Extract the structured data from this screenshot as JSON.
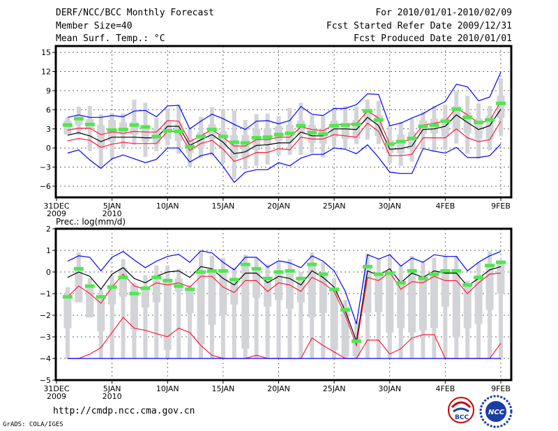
{
  "header": {
    "title": "DERF/NCC/BCC Monthly Forecast",
    "member_size": "Member Size=40",
    "variable": "Mean Surf. Temp.: °C",
    "period": "For 2010/01/01-2010/02/09",
    "started": "Fcst Started Refer Date 2009/12/31",
    "produced": "Fcst Produced Date 2010/01/01"
  },
  "footer": {
    "url": "http://cmdp.ncc.cma.gov.cn",
    "grads": "GrADS: COLA/IGES",
    "logo_bcc": "BCC",
    "logo_ncc": "NCC"
  },
  "colors": {
    "box": "#d3d4d8",
    "obs": "#4ee84e",
    "mean": "#000000",
    "spread": "#ff1a3c",
    "extreme": "#0000ff"
  },
  "chart_data": [
    {
      "type": "line",
      "title": "Mean Surf. Temp.: °C",
      "xlabel": "",
      "ylabel": "°C",
      "ylim": [
        -7.75,
        16
      ],
      "yticks": [
        15,
        12,
        9,
        6,
        3,
        0,
        -3,
        -6
      ],
      "ytick_labels": [
        "15",
        "12",
        "9",
        "6",
        "3",
        "0",
        "−3",
        "−6"
      ],
      "xticks": [
        {
          "day": 0,
          "label": "31DEC",
          "sub": "2009"
        },
        {
          "day": 5,
          "label": "5JAN",
          "sub": "2010"
        },
        {
          "day": 10,
          "label": "10JAN"
        },
        {
          "day": 15,
          "label": "15JAN"
        },
        {
          "day": 20,
          "label": "20JAN"
        },
        {
          "day": 25,
          "label": "25JAN"
        },
        {
          "day": 30,
          "label": "30JAN"
        },
        {
          "day": 35,
          "label": "4FEB"
        },
        {
          "day": 40,
          "label": "9FEB"
        }
      ],
      "grid": true,
      "series": [
        {
          "name": "ensemble-mean",
          "color": "#000000",
          "values": [
            2.0,
            2.4,
            1.9,
            1.0,
            1.7,
            1.7,
            1.7,
            1.6,
            1.6,
            3.4,
            3.4,
            0.4,
            1.3,
            2.1,
            0.9,
            -0.9,
            -0.6,
            0.4,
            0.5,
            0.8,
            0.8,
            2.5,
            1.9,
            1.9,
            3.0,
            3.0,
            2.9,
            4.8,
            3.5,
            -0.2,
            -0.1,
            0.3,
            2.9,
            3.0,
            3.4,
            5.2,
            4.0,
            2.9,
            3.5,
            6.1
          ]
        },
        {
          "name": "upper-spread",
          "color": "#ff1a3c",
          "values": [
            2.8,
            3.1,
            3.1,
            2.1,
            2.5,
            2.3,
            2.6,
            2.5,
            2.5,
            4.3,
            4.2,
            1.0,
            1.9,
            2.9,
            1.7,
            0.3,
            0.3,
            1.3,
            1.3,
            1.7,
            1.7,
            3.3,
            2.9,
            2.7,
            3.7,
            3.7,
            3.8,
            5.8,
            4.7,
            0.6,
            0.9,
            1.4,
            3.6,
            3.9,
            4.2,
            6.3,
            5.2,
            3.9,
            4.3,
            7.3
          ]
        },
        {
          "name": "lower-spread",
          "color": "#ff1a3c",
          "values": [
            1.1,
            1.5,
            1.2,
            0.1,
            0.6,
            0.9,
            0.7,
            0.7,
            0.7,
            2.6,
            2.6,
            -0.4,
            0.7,
            1.2,
            -0.2,
            -2.1,
            -1.5,
            -0.7,
            -0.7,
            -0.1,
            -0.3,
            1.7,
            1.4,
            1.4,
            2.1,
            1.9,
            1.7,
            3.9,
            2.6,
            -1.2,
            -1.2,
            -1.0,
            1.6,
            1.6,
            1.6,
            3.0,
            1.6,
            1.0,
            1.3,
            4.2
          ]
        },
        {
          "name": "maximum",
          "color": "#0000ff",
          "values": [
            4.8,
            5.2,
            4.8,
            4.8,
            5.1,
            4.9,
            5.8,
            5.9,
            4.9,
            6.6,
            6.7,
            3.0,
            4.2,
            5.3,
            4.6,
            3.7,
            2.9,
            4.2,
            4.3,
            3.8,
            4.3,
            6.5,
            5.3,
            5.1,
            6.2,
            6.2,
            6.8,
            8.5,
            8.4,
            3.5,
            3.9,
            4.7,
            5.4,
            6.4,
            7.3,
            10.0,
            9.6,
            7.4,
            8.0,
            11.9
          ]
        },
        {
          "name": "minimum",
          "color": "#0000ff",
          "values": [
            -0.8,
            -0.3,
            -1.9,
            -3.2,
            -1.7,
            -1.1,
            -1.7,
            -2.3,
            -1.8,
            0.0,
            0.0,
            -2.2,
            -1.2,
            -0.8,
            -2.9,
            -5.4,
            -3.8,
            -3.4,
            -3.4,
            -2.3,
            -2.8,
            -1.6,
            -1.0,
            -1.0,
            0.0,
            -0.2,
            -0.9,
            0.5,
            -1.5,
            -3.8,
            -4.0,
            -4.0,
            -0.1,
            -0.5,
            -0.8,
            0.1,
            -1.5,
            -1.5,
            -1.2,
            0.6
          ]
        }
      ],
      "markers": [
        3.6,
        4.6,
        3.7,
        null,
        2.8,
        2.9,
        3.6,
        3.3,
        1.8,
        2.7,
        2.6,
        0.2,
        1.8,
        2.9,
        1.8,
        0.9,
        0.8,
        1.6,
        1.7,
        2.1,
        2.3,
        3.5,
        2.4,
        2.2,
        3.5,
        3.6,
        3.7,
        5.8,
        4.4,
        0.6,
        1.0,
        1.5,
        3.4,
        3.6,
        4.2,
        6.1,
        4.8,
        4.0,
        4.4,
        7.0
      ],
      "boxes": {
        "whisker_max": [
          4.8,
          6.5,
          6.6,
          5.3,
          5.5,
          5.4,
          7.6,
          7.1,
          4.7,
          6.2,
          6.8,
          3.0,
          4.9,
          6.4,
          6.1,
          5.9,
          4.4,
          5.3,
          5.4,
          5.0,
          6.3,
          7.1,
          5.1,
          5.0,
          6.4,
          6.6,
          6.5,
          7.6,
          7.4,
          3.6,
          4.1,
          4.6,
          5.7,
          6.6,
          6.8,
          8.9,
          8.2,
          7.0,
          6.6,
          10.9
        ],
        "box_high": [
          4.3,
          5.0,
          4.5,
          3.6,
          4.4,
          4.0,
          4.1,
          3.6,
          3.0,
          4.1,
          3.9,
          1.5,
          2.5,
          3.7,
          2.6,
          2.0,
          2.0,
          3.0,
          3.1,
          3.4,
          3.6,
          4.3,
          3.6,
          3.1,
          4.3,
          4.0,
          4.4,
          6.2,
          5.2,
          1.2,
          2.1,
          2.5,
          4.3,
          4.6,
          4.7,
          6.6,
          5.6,
          4.6,
          5.1,
          8.2
        ],
        "box_low": [
          2.1,
          3.6,
          3.0,
          -0.1,
          1.0,
          2.1,
          2.1,
          1.0,
          0.6,
          1.4,
          1.1,
          -0.8,
          0.2,
          1.4,
          0.1,
          -1.6,
          -1.5,
          -0.3,
          0.5,
          1.1,
          0.9,
          2.1,
          0.8,
          0.7,
          1.7,
          1.4,
          1.4,
          4.1,
          1.9,
          -0.8,
          -0.8,
          -0.2,
          2.2,
          2.3,
          1.8,
          2.7,
          2.3,
          1.4,
          1.4,
          4.7
        ],
        "whisker_min": [
          2.1,
          2.1,
          -0.5,
          -3.2,
          -1.7,
          0.0,
          0.5,
          -1.4,
          -0.5,
          0.4,
          -0.9,
          -3.0,
          -1.6,
          -1.2,
          -2.4,
          -4.9,
          -3.4,
          -2.8,
          -2.6,
          -1.2,
          -1.1,
          -1.1,
          -0.8,
          -1.5,
          0.2,
          0.0,
          0.6,
          1.3,
          0.6,
          -2.4,
          -2.8,
          -2.1,
          -0.1,
          -0.6,
          -0.3,
          0.7,
          -0.9,
          -1.7,
          -0.4,
          1.9
        ]
      }
    },
    {
      "type": "line",
      "title": "Prec.: log(mm/d)",
      "xlabel": "",
      "ylabel": "log(mm/d)",
      "ylim": [
        -5,
        2
      ],
      "yticks": [
        2,
        1,
        0,
        -1,
        -2,
        -3,
        -4,
        -5
      ],
      "ytick_labels": [
        "2",
        "1",
        "0",
        "−1",
        "−2",
        "−3",
        "−4",
        "−5"
      ],
      "xticks": [
        {
          "day": 0,
          "label": "31DEC",
          "sub": "2009"
        },
        {
          "day": 5,
          "label": "5JAN",
          "sub": "2010"
        },
        {
          "day": 10,
          "label": "10JAN"
        },
        {
          "day": 15,
          "label": "15JAN"
        },
        {
          "day": 20,
          "label": "20JAN"
        },
        {
          "day": 25,
          "label": "25JAN"
        },
        {
          "day": 30,
          "label": "30JAN"
        },
        {
          "day": 35,
          "label": "4FEB"
        },
        {
          "day": 40,
          "label": "9FEB"
        }
      ],
      "grid": true,
      "series": [
        {
          "name": "ensemble-mean",
          "color": "#000000",
          "values": [
            -0.25,
            0.0,
            -0.2,
            -0.8,
            -0.1,
            0.2,
            -0.3,
            -0.5,
            -0.2,
            0.0,
            0.05,
            -0.25,
            0.25,
            0.15,
            -0.3,
            -0.6,
            -0.05,
            -0.05,
            -0.5,
            -0.2,
            -0.3,
            -0.6,
            0.05,
            -0.25,
            -0.7,
            -1.8,
            -3.2,
            0.05,
            -0.15,
            0.15,
            -0.5,
            -0.05,
            -0.25,
            0.05,
            -0.05,
            -0.05,
            -0.65,
            -0.3,
            0.1,
            0.25
          ]
        },
        {
          "name": "upper-spread",
          "color": "#ff1a3c",
          "values": [
            -1.15,
            -0.65,
            -1.0,
            -1.45,
            -0.7,
            -0.1,
            -0.65,
            -0.8,
            -0.5,
            -0.6,
            -0.5,
            -0.7,
            -0.2,
            -0.2,
            -0.7,
            -0.95,
            -0.4,
            -0.4,
            -0.9,
            -0.5,
            -0.6,
            -0.9,
            -0.25,
            -0.5,
            -0.9,
            -2.0,
            -3.4,
            -0.25,
            -0.4,
            0.0,
            -0.8,
            -0.45,
            -0.5,
            -0.2,
            -0.4,
            -0.4,
            -1.0,
            -0.5,
            -0.1,
            -0.05
          ]
        },
        {
          "name": "lower-spread",
          "color": "#ff1a3c",
          "values": [
            -4,
            -4,
            -3.8,
            -3.5,
            -2.8,
            -2.1,
            -2.6,
            -2.7,
            -2.85,
            -3.0,
            -2.6,
            -2.8,
            -3.4,
            -3.85,
            -4,
            -4,
            -4,
            -3.85,
            -4,
            -4,
            -4,
            -4,
            -3.05,
            -3.4,
            -3.7,
            -4,
            -4,
            -3.15,
            -3.15,
            -3.8,
            -3.55,
            -3.05,
            -2.9,
            -2.9,
            -4,
            -4,
            -4,
            -4,
            -4,
            -3.3
          ]
        },
        {
          "name": "maximum",
          "color": "#0000ff",
          "values": [
            0.5,
            0.75,
            0.68,
            0.05,
            0.68,
            0.95,
            0.55,
            0.2,
            0.5,
            0.72,
            0.82,
            0.45,
            0.98,
            0.88,
            0.45,
            0.1,
            0.68,
            0.68,
            0.22,
            0.52,
            0.42,
            0.2,
            0.75,
            0.5,
            0.05,
            -0.9,
            -2.4,
            0.8,
            0.6,
            0.8,
            0.27,
            0.65,
            0.45,
            0.8,
            0.72,
            0.72,
            0.05,
            0.45,
            0.75,
            0.95
          ]
        },
        {
          "name": "minimum",
          "color": "#0000ff",
          "values": [
            -4,
            -4,
            -4,
            -4,
            -4,
            -4,
            -4,
            -4,
            -4,
            -4,
            -4,
            -4,
            -4,
            -4,
            -4,
            -4,
            -4,
            -4,
            -4,
            -4,
            -4,
            -4,
            -4,
            -4,
            -4,
            -4,
            -4,
            -4,
            -4,
            -4,
            -4,
            -4,
            -4,
            -4,
            -4,
            -4,
            -4,
            -4,
            -4,
            -4
          ]
        }
      ],
      "markers": [
        -1.15,
        0.15,
        -0.65,
        -1.15,
        -0.7,
        -0.25,
        -1.0,
        -0.75,
        -0.25,
        -0.4,
        -0.65,
        -0.8,
        0.0,
        0.05,
        0.05,
        -0.35,
        0.35,
        0.15,
        -0.3,
        0.0,
        0.05,
        -0.3,
        0.35,
        -0.1,
        -0.8,
        -1.75,
        -3.2,
        0.25,
        -0.1,
        -0.05,
        -0.5,
        0.05,
        -0.3,
        -0.1,
        0.05,
        0.05,
        -0.6,
        -0.25,
        0.3,
        0.45
      ],
      "boxes": {
        "whisker_max": [
          -0.7,
          0.9,
          -0.3,
          -0.8,
          -0.2,
          0.6,
          -0.5,
          -0.15,
          0.3,
          0.3,
          0.15,
          -0.6,
          0.95,
          0.75,
          0.65,
          0.2,
          0.8,
          0.65,
          0.35,
          0.5,
          0.6,
          0.0,
          0.9,
          0.45,
          -0.3,
          -1.3,
          -2.3,
          0.85,
          0.6,
          0.8,
          0.3,
          0.75,
          0.5,
          0.65,
          0.75,
          0.75,
          -0.4,
          0.45,
          0.95,
          0.55
        ],
        "box_high": [
          -1.0,
          0.2,
          -0.6,
          -1.2,
          -0.6,
          0.2,
          -0.6,
          -0.7,
          -0.4,
          -0.3,
          -0.3,
          -0.8,
          0.0,
          0.0,
          0.0,
          -0.4,
          0.3,
          0.1,
          -0.4,
          -0.1,
          0.0,
          -0.3,
          0.3,
          -0.1,
          -0.8,
          -1.6,
          -3.0,
          0.3,
          -0.1,
          0.0,
          -0.4,
          0.0,
          -0.3,
          0.0,
          0.0,
          0.0,
          -0.6,
          -0.2,
          0.3,
          0.4
        ],
        "box_low": [
          -2.6,
          -1.4,
          -2.1,
          -2.75,
          -1.5,
          -1.15,
          -2.65,
          -1.65,
          -1.4,
          -3.6,
          -0.9,
          -1.9,
          -3.35,
          -2.45,
          -2.0,
          -1.5,
          -3.55,
          -1.2,
          -1.6,
          -1.3,
          -1.7,
          -1.4,
          -2.1,
          -1.9,
          -3.6,
          -3.9,
          -3.9,
          -1.9,
          -1.85,
          -2.8,
          -2.6,
          -2.8,
          -2.7,
          -2.6,
          -1.6,
          -3.0,
          -2.6,
          -2.4,
          -1.75,
          -1.0
        ],
        "whisker_min": [
          -4,
          -1.4,
          -2.1,
          -4,
          -4,
          -4,
          -4,
          -4,
          -4,
          -4,
          -4,
          -4,
          -4,
          -4,
          -4,
          -4,
          -4,
          -4,
          -4,
          -4,
          -4,
          -4,
          -4,
          -4,
          -4,
          -4,
          -4,
          -4,
          -4,
          -4,
          -4,
          -4,
          -4,
          -4,
          -4,
          -4,
          -4,
          -4,
          -4,
          -4
        ]
      }
    }
  ]
}
